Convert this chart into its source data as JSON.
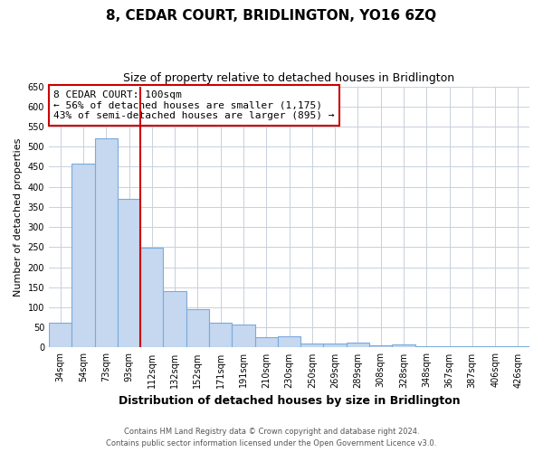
{
  "title": "8, CEDAR COURT, BRIDLINGTON, YO16 6ZQ",
  "subtitle": "Size of property relative to detached houses in Bridlington",
  "xlabel": "Distribution of detached houses by size in Bridlington",
  "ylabel": "Number of detached properties",
  "bar_labels": [
    "34sqm",
    "54sqm",
    "73sqm",
    "93sqm",
    "112sqm",
    "132sqm",
    "152sqm",
    "171sqm",
    "191sqm",
    "210sqm",
    "230sqm",
    "250sqm",
    "269sqm",
    "289sqm",
    "308sqm",
    "328sqm",
    "348sqm",
    "367sqm",
    "387sqm",
    "406sqm",
    "426sqm"
  ],
  "bar_values": [
    62,
    457,
    521,
    370,
    248,
    140,
    95,
    61,
    57,
    25,
    27,
    10,
    10,
    13,
    5,
    8,
    4,
    4,
    3,
    4,
    3
  ],
  "bar_color": "#c5d8f0",
  "bar_edge_color": "#7aaadc",
  "ylim": [
    0,
    650
  ],
  "yticks": [
    0,
    50,
    100,
    150,
    200,
    250,
    300,
    350,
    400,
    450,
    500,
    550,
    600,
    650
  ],
  "vline_x": 3.5,
  "vline_color": "#cc0000",
  "annotation_title": "8 CEDAR COURT: 100sqm",
  "annotation_line1": "← 56% of detached houses are smaller (1,175)",
  "annotation_line2": "43% of semi-detached houses are larger (895) →",
  "annotation_box_color": "#cc0000",
  "footer_line1": "Contains HM Land Registry data © Crown copyright and database right 2024.",
  "footer_line2": "Contains public sector information licensed under the Open Government Licence v3.0.",
  "background_color": "#ffffff",
  "grid_color": "#c8d0dc",
  "title_fontsize": 11,
  "subtitle_fontsize": 9,
  "xlabel_fontsize": 9,
  "ylabel_fontsize": 8,
  "tick_fontsize": 7,
  "footer_fontsize": 6,
  "ann_fontsize": 8
}
